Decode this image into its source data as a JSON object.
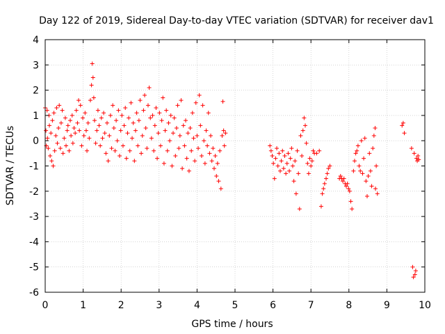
{
  "chart_data": {
    "type": "scatter",
    "title": "Day 122 of 2019, Sidereal Day-to-day VTEC variation (SDTVAR) for receiver dav1",
    "xlabel": "GPS time / hours",
    "ylabel": "SDTVAR / TECUs",
    "xlim": [
      0,
      10
    ],
    "ylim": [
      -6,
      4
    ],
    "xticks": [
      0,
      1,
      2,
      3,
      4,
      5,
      6,
      7,
      8,
      9,
      10
    ],
    "xtick_labels": [
      "0",
      "1",
      "2",
      "3",
      "4",
      "5",
      "6",
      "7",
      "8",
      "9",
      "10"
    ],
    "yticks": [
      -6,
      -5,
      -4,
      -3,
      -2,
      -1,
      0,
      1,
      2,
      3,
      4
    ],
    "ytick_labels": [
      "-6",
      "-5",
      "-4",
      "-3",
      "-2",
      "-1",
      "0",
      "1",
      "2",
      "3",
      "4"
    ],
    "grid": true,
    "marker": "+",
    "color": "#ff0000",
    "series": [
      {
        "name": "SDTVAR",
        "points": [
          [
            0.0,
            1.3
          ],
          [
            0.02,
            0.4
          ],
          [
            0.03,
            -0.2
          ],
          [
            0.05,
            1.2
          ],
          [
            0.06,
            0.1
          ],
          [
            0.08,
            -0.3
          ],
          [
            0.1,
            1.0
          ],
          [
            0.11,
            0.6
          ],
          [
            0.13,
            -0.6
          ],
          [
            0.15,
            0.3
          ],
          [
            0.17,
            -0.8
          ],
          [
            0.19,
            0.8
          ],
          [
            0.21,
            -1.0
          ],
          [
            0.23,
            1.1
          ],
          [
            0.25,
            -0.4
          ],
          [
            0.28,
            0.2
          ],
          [
            0.3,
            1.3
          ],
          [
            0.32,
            -0.1
          ],
          [
            0.35,
            0.5
          ],
          [
            0.37,
            1.4
          ],
          [
            0.4,
            -0.3
          ],
          [
            0.42,
            0.7
          ],
          [
            0.45,
            1.2
          ],
          [
            0.47,
            -0.5
          ],
          [
            0.5,
            0.1
          ],
          [
            0.53,
            0.9
          ],
          [
            0.55,
            -0.2
          ],
          [
            0.58,
            0.4
          ],
          [
            0.6,
            0.6
          ],
          [
            0.63,
            -0.4
          ],
          [
            0.66,
            0.8
          ],
          [
            0.68,
            0.2
          ],
          [
            0.71,
            1.0
          ],
          [
            0.73,
            -0.1
          ],
          [
            0.76,
            0.5
          ],
          [
            0.79,
            0.3
          ],
          [
            0.82,
            1.2
          ],
          [
            0.85,
            0.7
          ],
          [
            0.88,
            1.6
          ],
          [
            0.9,
            0.4
          ],
          [
            0.93,
            1.4
          ],
          [
            0.96,
            -0.2
          ],
          [
            0.99,
            0.9
          ],
          [
            1.02,
            0.2
          ],
          [
            1.05,
            1.1
          ],
          [
            1.08,
            0.4
          ],
          [
            1.1,
            -0.4
          ],
          [
            1.13,
            0.7
          ],
          [
            1.16,
            0.1
          ],
          [
            1.19,
            1.6
          ],
          [
            1.22,
            2.2
          ],
          [
            1.24,
            3.05
          ],
          [
            1.26,
            2.5
          ],
          [
            1.28,
            1.7
          ],
          [
            1.3,
            0.8
          ],
          [
            1.33,
            -0.1
          ],
          [
            1.36,
            0.4
          ],
          [
            1.39,
            1.2
          ],
          [
            1.42,
            0.6
          ],
          [
            1.45,
            -0.2
          ],
          [
            1.48,
            0.9
          ],
          [
            1.51,
            0.1
          ],
          [
            1.54,
            1.1
          ],
          [
            1.57,
            0.3
          ],
          [
            1.6,
            -0.5
          ],
          [
            1.63,
            0.7
          ],
          [
            1.66,
            -0.8
          ],
          [
            1.69,
            0.2
          ],
          [
            1.72,
            1.0
          ],
          [
            1.75,
            -0.3
          ],
          [
            1.78,
            1.4
          ],
          [
            1.81,
            0.5
          ],
          [
            1.84,
            -0.4
          ],
          [
            1.87,
            0.8
          ],
          [
            1.9,
            0.0
          ],
          [
            1.93,
            1.2
          ],
          [
            1.96,
            -0.6
          ],
          [
            1.99,
            0.4
          ],
          [
            2.02,
            1.0
          ],
          [
            2.05,
            -0.2
          ],
          [
            2.08,
            0.6
          ],
          [
            2.11,
            1.3
          ],
          [
            2.14,
            -0.7
          ],
          [
            2.17,
            0.3
          ],
          [
            2.2,
            0.9
          ],
          [
            2.23,
            -0.4
          ],
          [
            2.26,
            1.5
          ],
          [
            2.29,
            0.1
          ],
          [
            2.32,
            0.7
          ],
          [
            2.35,
            -0.8
          ],
          [
            2.38,
            0.4
          ],
          [
            2.41,
            1.1
          ],
          [
            2.44,
            -0.2
          ],
          [
            2.47,
            0.8
          ],
          [
            2.5,
            1.6
          ],
          [
            2.53,
            -0.5
          ],
          [
            2.56,
            0.2
          ],
          [
            2.59,
            1.2
          ],
          [
            2.62,
            1.8
          ],
          [
            2.65,
            0.5
          ],
          [
            2.68,
            -0.3
          ],
          [
            2.71,
            1.4
          ],
          [
            2.74,
            2.1
          ],
          [
            2.77,
            0.9
          ],
          [
            2.8,
            0.1
          ],
          [
            2.83,
            1.0
          ],
          [
            2.86,
            -0.4
          ],
          [
            2.89,
            0.6
          ],
          [
            2.92,
            1.3
          ],
          [
            2.95,
            -0.7
          ],
          [
            2.98,
            0.3
          ],
          [
            3.01,
            1.1
          ],
          [
            3.04,
            -0.2
          ],
          [
            3.07,
            0.8
          ],
          [
            3.1,
            1.7
          ],
          [
            3.13,
            -0.9
          ],
          [
            3.16,
            0.4
          ],
          [
            3.19,
            1.2
          ],
          [
            3.22,
            -0.4
          ],
          [
            3.25,
            0.7
          ],
          [
            3.28,
            0.0
          ],
          [
            3.31,
            1.0
          ],
          [
            3.34,
            -1.0
          ],
          [
            3.37,
            0.3
          ],
          [
            3.4,
            0.9
          ],
          [
            3.43,
            -0.6
          ],
          [
            3.46,
            0.5
          ],
          [
            3.49,
            1.4
          ],
          [
            3.52,
            -0.3
          ],
          [
            3.55,
            0.2
          ],
          [
            3.58,
            1.6
          ],
          [
            3.61,
            -1.1
          ],
          [
            3.64,
            0.6
          ],
          [
            3.67,
            -0.2
          ],
          [
            3.7,
            0.8
          ],
          [
            3.73,
            -0.7
          ],
          [
            3.76,
            0.3
          ],
          [
            3.79,
            -1.2
          ],
          [
            3.82,
            0.5
          ],
          [
            3.85,
            -0.4
          ],
          [
            3.88,
            1.1
          ],
          [
            3.91,
            0.1
          ],
          [
            3.94,
            -0.8
          ],
          [
            3.97,
            1.5
          ],
          [
            4.0,
            0.2
          ],
          [
            4.03,
            -0.3
          ],
          [
            4.06,
            1.8
          ],
          [
            4.09,
            0.6
          ],
          [
            4.12,
            -0.6
          ],
          [
            4.15,
            1.4
          ],
          [
            4.18,
            0.0
          ],
          [
            4.21,
            -0.9
          ],
          [
            4.24,
            0.4
          ],
          [
            4.27,
            -0.2
          ],
          [
            4.3,
            1.1
          ],
          [
            4.33,
            -0.5
          ],
          [
            4.36,
            0.2
          ],
          [
            4.39,
            -0.8
          ],
          [
            4.42,
            -0.3
          ],
          [
            4.45,
            -1.1
          ],
          [
            4.48,
            -0.6
          ],
          [
            4.51,
            -1.4
          ],
          [
            4.54,
            -0.9
          ],
          [
            4.57,
            -1.6
          ],
          [
            4.6,
            -0.4
          ],
          [
            4.63,
            -1.9
          ],
          [
            4.66,
            0.2
          ],
          [
            4.68,
            1.55
          ],
          [
            4.7,
            0.4
          ],
          [
            4.72,
            -0.2
          ],
          [
            4.75,
            0.3
          ],
          [
            5.92,
            -0.2
          ],
          [
            5.95,
            -0.4
          ],
          [
            5.98,
            -0.6
          ],
          [
            6.01,
            -0.9
          ],
          [
            6.04,
            -1.5
          ],
          [
            6.07,
            -0.7
          ],
          [
            6.1,
            -0.3
          ],
          [
            6.13,
            -1.0
          ],
          [
            6.16,
            -0.5
          ],
          [
            6.19,
            -1.2
          ],
          [
            6.22,
            -0.8
          ],
          [
            6.25,
            -0.4
          ],
          [
            6.28,
            -1.1
          ],
          [
            6.31,
            -0.6
          ],
          [
            6.34,
            -1.3
          ],
          [
            6.37,
            -0.9
          ],
          [
            6.4,
            -0.5
          ],
          [
            6.43,
            -1.2
          ],
          [
            6.46,
            -0.7
          ],
          [
            6.49,
            -0.3
          ],
          [
            6.52,
            -1.0
          ],
          [
            6.55,
            -1.6
          ],
          [
            6.58,
            -0.8
          ],
          [
            6.61,
            -2.1
          ],
          [
            6.64,
            -0.4
          ],
          [
            6.67,
            -1.3
          ],
          [
            6.7,
            -2.7
          ],
          [
            6.73,
            0.2
          ],
          [
            6.76,
            -0.6
          ],
          [
            6.79,
            0.4
          ],
          [
            6.82,
            0.9
          ],
          [
            6.85,
            0.6
          ],
          [
            6.88,
            -0.1
          ],
          [
            6.91,
            -0.9
          ],
          [
            6.94,
            -1.3
          ],
          [
            6.97,
            -0.7
          ],
          [
            7.0,
            -1.0
          ],
          [
            7.03,
            -0.8
          ],
          [
            7.06,
            -0.4
          ],
          [
            7.09,
            -0.5
          ],
          [
            7.15,
            -0.5
          ],
          [
            7.22,
            -0.4
          ],
          [
            7.27,
            -2.6
          ],
          [
            7.3,
            -2.1
          ],
          [
            7.33,
            -1.9
          ],
          [
            7.36,
            -1.7
          ],
          [
            7.4,
            -1.5
          ],
          [
            7.43,
            -1.3
          ],
          [
            7.46,
            -1.1
          ],
          [
            7.5,
            -1.0
          ],
          [
            7.75,
            -1.5
          ],
          [
            7.78,
            -1.4
          ],
          [
            7.81,
            -1.5
          ],
          [
            7.84,
            -1.6
          ],
          [
            7.87,
            -1.5
          ],
          [
            7.9,
            -1.7
          ],
          [
            7.93,
            -1.8
          ],
          [
            7.96,
            -1.7
          ],
          [
            7.99,
            -1.9
          ],
          [
            8.02,
            -2.0
          ],
          [
            8.05,
            -2.4
          ],
          [
            8.08,
            -2.7
          ],
          [
            8.12,
            -1.2
          ],
          [
            8.15,
            -0.8
          ],
          [
            8.18,
            -0.5
          ],
          [
            8.21,
            -0.4
          ],
          [
            8.24,
            -0.2
          ],
          [
            8.27,
            -1.0
          ],
          [
            8.3,
            -1.2
          ],
          [
            8.33,
            0.0
          ],
          [
            8.36,
            -1.3
          ],
          [
            8.39,
            -0.7
          ],
          [
            8.42,
            0.1
          ],
          [
            8.45,
            -1.6
          ],
          [
            8.48,
            -2.2
          ],
          [
            8.51,
            -1.4
          ],
          [
            8.54,
            -0.5
          ],
          [
            8.57,
            -1.2
          ],
          [
            8.6,
            -1.8
          ],
          [
            8.63,
            -0.3
          ],
          [
            8.66,
            0.2
          ],
          [
            8.69,
            0.5
          ],
          [
            8.72,
            -1.0
          ],
          [
            8.75,
            -2.1
          ],
          [
            8.7,
            -1.9
          ],
          [
            9.4,
            0.6
          ],
          [
            9.43,
            0.7
          ],
          [
            9.46,
            0.3
          ],
          [
            9.65,
            -0.3
          ],
          [
            9.68,
            -5.0
          ],
          [
            9.7,
            -5.4
          ],
          [
            9.72,
            -0.5
          ],
          [
            9.74,
            -5.3
          ],
          [
            9.76,
            -5.15
          ],
          [
            9.78,
            -0.7
          ],
          [
            9.8,
            -0.8
          ],
          [
            9.82,
            -0.6
          ],
          [
            9.84,
            -0.75
          ]
        ]
      }
    ]
  }
}
